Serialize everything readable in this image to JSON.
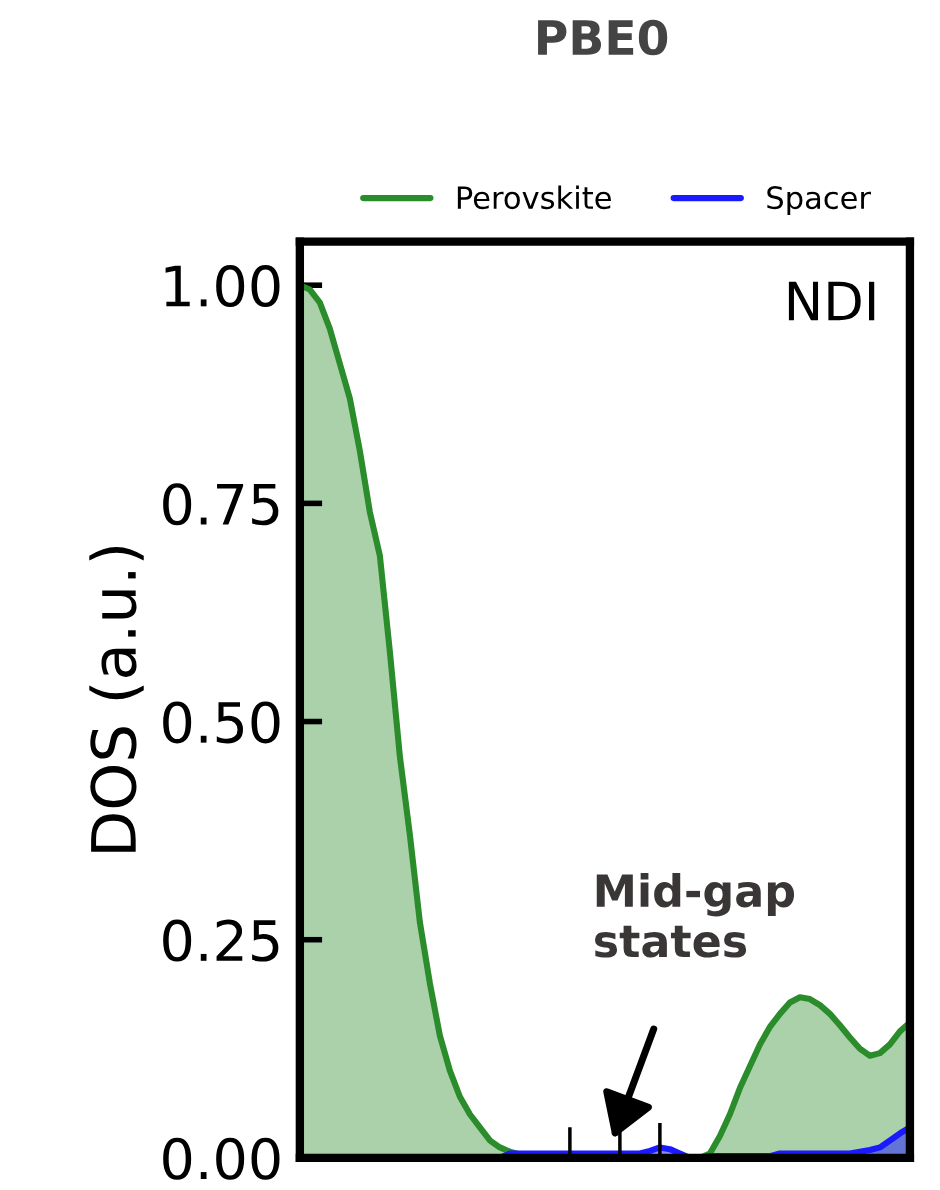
{
  "chart_data": {
    "type": "area",
    "title": "PBE0",
    "ylabel": "DOS (a.u.)",
    "categories": [
      null,
      null,
      null,
      null,
      null,
      null,
      null,
      null,
      null,
      null,
      null,
      null,
      null,
      null,
      null,
      null,
      null,
      null,
      null,
      null,
      null,
      null,
      null,
      null,
      null,
      null,
      null,
      null,
      null,
      null,
      null,
      null,
      null,
      null,
      null,
      null,
      null,
      null,
      null,
      null,
      null,
      null,
      null,
      null,
      null,
      null,
      null,
      null,
      null,
      null,
      null,
      null,
      null,
      null,
      null,
      null,
      null,
      null,
      null,
      null,
      null,
      null
    ],
    "series": [
      {
        "name": "Perovskite",
        "color": "#2a8c2a",
        "values": [
          1.0,
          0.995,
          0.98,
          0.95,
          0.91,
          0.87,
          0.81,
          0.74,
          0.69,
          0.58,
          0.46,
          0.37,
          0.27,
          0.2,
          0.14,
          0.1,
          0.07,
          0.05,
          0.035,
          0.02,
          0.012,
          0.007,
          0.004,
          0.002,
          0,
          0,
          0,
          0,
          0,
          0,
          0,
          0,
          0,
          0,
          0,
          0,
          0,
          0,
          0,
          0,
          0,
          0.005,
          0.025,
          0.05,
          0.08,
          0.105,
          0.13,
          0.15,
          0.165,
          0.178,
          0.184,
          0.182,
          0.175,
          0.165,
          0.152,
          0.138,
          0.125,
          0.117,
          0.12,
          0.13,
          0.145,
          0.155
        ]
      },
      {
        "name": "Spacer",
        "color": "#1a1aff",
        "values": [
          0,
          0,
          0,
          0,
          0,
          0,
          0,
          0,
          0,
          0,
          0,
          0,
          0,
          0,
          0,
          0,
          0,
          0,
          0,
          0,
          0,
          0.005,
          0.005,
          0.005,
          0.005,
          0.005,
          0.005,
          0.005,
          0.005,
          0.005,
          0.005,
          0.005,
          0.005,
          0.005,
          0.005,
          0.008,
          0.012,
          0.01,
          0.005,
          0,
          0,
          0.002,
          0.002,
          0.002,
          0.002,
          0.002,
          0.002,
          0.002,
          0.005,
          0.005,
          0.005,
          0.005,
          0.005,
          0.005,
          0.005,
          0.005,
          0.007,
          0.009,
          0.012,
          0.02,
          0.028,
          0.035
        ]
      },
      {
        "type": "bar",
        "color": "#000000",
        "values": [
          null,
          null,
          null,
          null,
          null,
          null,
          null,
          null,
          null,
          null,
          null,
          null,
          null,
          null,
          null,
          null,
          null,
          null,
          null,
          null,
          null,
          null,
          null,
          null,
          null,
          null,
          null,
          0.035,
          null,
          null,
          null,
          null,
          0.035,
          null,
          null,
          null,
          0.04,
          null,
          null,
          null,
          null,
          null,
          null,
          null,
          null,
          null,
          null,
          null,
          null,
          null,
          null,
          null,
          null,
          null,
          null,
          null,
          null,
          null,
          null,
          null,
          null,
          null
        ]
      }
    ],
    "ylim": [
      0,
      1.05
    ],
    "yticks": [
      {
        "value": 0,
        "label": "0.00"
      },
      0.25,
      {
        "value": 0.5,
        "label": "0.50"
      },
      0.75,
      {
        "value": 1,
        "label": "1.00"
      }
    ],
    "annotations": [
      "NDI",
      "Mid-gap states"
    ],
    "legend": "top",
    "grid": false
  }
}
